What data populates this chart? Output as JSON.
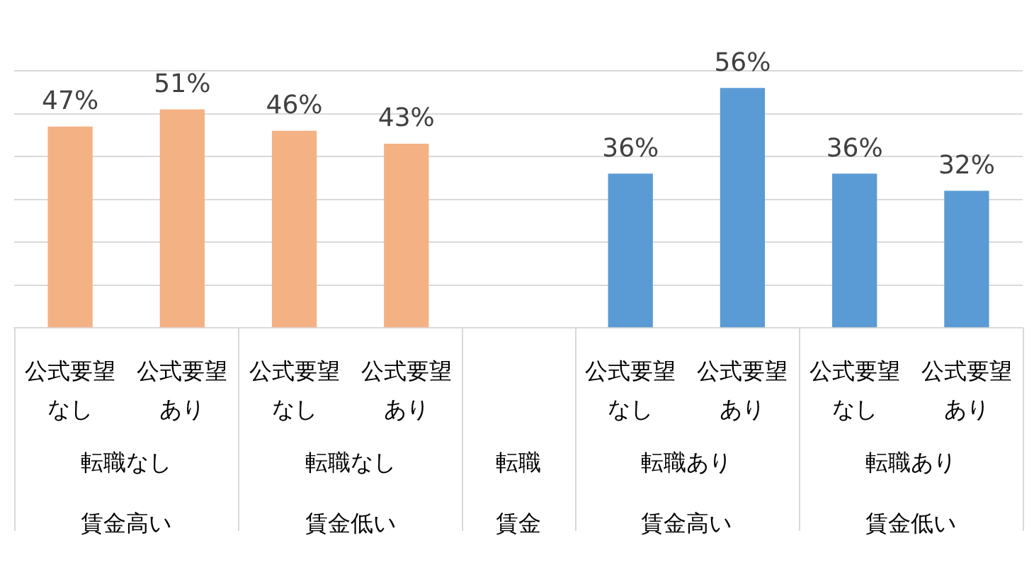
{
  "chart_data": {
    "type": "bar",
    "categories": [
      "公式要望なし",
      "公式要望あり",
      "公式要望なし",
      "公式要望あり",
      null,
      "公式要望なし",
      "公式要望あり",
      "公式要望なし",
      "公式要望あり"
    ],
    "values": [
      47,
      51,
      46,
      43,
      null,
      36,
      56,
      36,
      32
    ],
    "value_labels": [
      "47%",
      "51%",
      "46%",
      "43%",
      null,
      "36%",
      "56%",
      "36%",
      "32%"
    ],
    "colors": [
      "#f4b183",
      "#f4b183",
      "#f4b183",
      "#f4b183",
      null,
      "#5b9bd5",
      "#5b9bd5",
      "#5b9bd5",
      "#5b9bd5"
    ],
    "annotations": [
      "転職なし",
      "賃金高い",
      "転職なし",
      "賃金低い",
      "転職",
      "賃金",
      "転職あり",
      "賃金高い",
      "転職あり",
      "賃金低い"
    ],
    "ylim": [
      0,
      60
    ],
    "yticks": [
      0,
      10,
      20,
      30,
      40,
      50,
      60
    ],
    "grid": "y",
    "legend": false,
    "tick_labels": "x"
  }
}
